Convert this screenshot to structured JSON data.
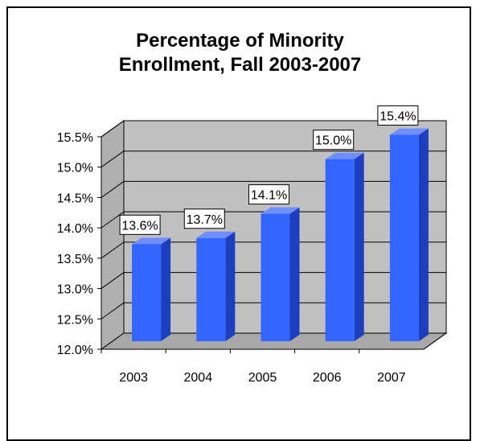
{
  "chart_data": {
    "type": "bar",
    "title_lines": [
      "Percentage of Minority",
      "Enrollment, Fall 2003-2007"
    ],
    "categories": [
      "2003",
      "2004",
      "2005",
      "2006",
      "2007"
    ],
    "values": [
      13.6,
      13.7,
      14.1,
      15.0,
      15.4
    ],
    "data_labels": [
      "13.6%",
      "13.7%",
      "14.1%",
      "15.0%",
      "15.4%"
    ],
    "y_ticks": [
      "12.0%",
      "12.5%",
      "13.0%",
      "13.5%",
      "14.0%",
      "14.5%",
      "15.0%",
      "15.5%"
    ],
    "ylim": [
      12.0,
      15.5
    ],
    "xlabel": "",
    "ylabel": "",
    "grid": true,
    "three_d": true,
    "colors": {
      "bar_front": "#3366ff",
      "bar_side": "#1d3fbf",
      "bar_top": "#6f8fff",
      "wall": "#c0c0c0",
      "floor": "#a8a8a8"
    }
  }
}
